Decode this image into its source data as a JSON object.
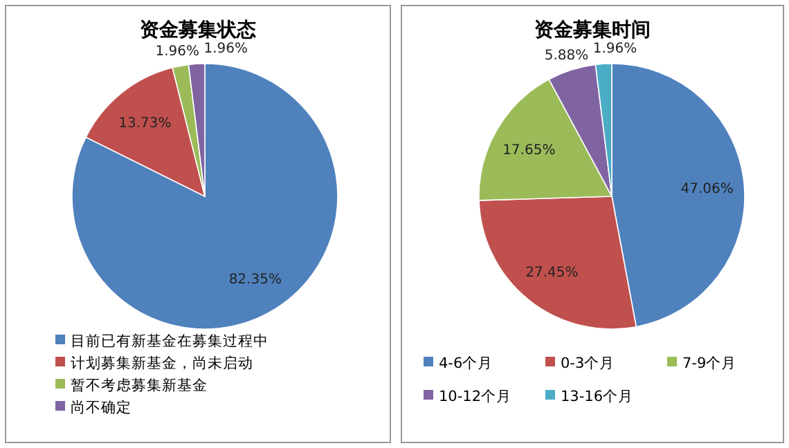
{
  "chart_data": [
    {
      "type": "pie",
      "title": "资金募集状态",
      "categories": [
        "目前已有新基金在募集过程中",
        "计划募集新基金，尚未启动",
        "暂不考虑募集新基金",
        "尚不确定"
      ],
      "values": [
        82.35,
        13.73,
        1.96,
        1.96
      ],
      "value_labels": [
        "82.35%",
        "13.73%",
        "1.96%",
        "1.96%"
      ],
      "colors": [
        "#4f81bd",
        "#c0504d",
        "#9bbb59",
        "#8064a2"
      ],
      "legend": "bottom"
    },
    {
      "type": "pie",
      "title": "资金募集时间",
      "categories": [
        "4-6个月",
        "0-3个月",
        "7-9个月",
        "10-12个月",
        "13-16个月"
      ],
      "values": [
        47.06,
        27.45,
        17.65,
        5.88,
        1.96
      ],
      "value_labels": [
        "47.06%",
        "27.45%",
        "17.65%",
        "5.88%",
        "1.96%"
      ],
      "colors": [
        "#4f81bd",
        "#c0504d",
        "#9bbb59",
        "#8064a2",
        "#4bacc6"
      ],
      "legend": "bottom"
    }
  ]
}
